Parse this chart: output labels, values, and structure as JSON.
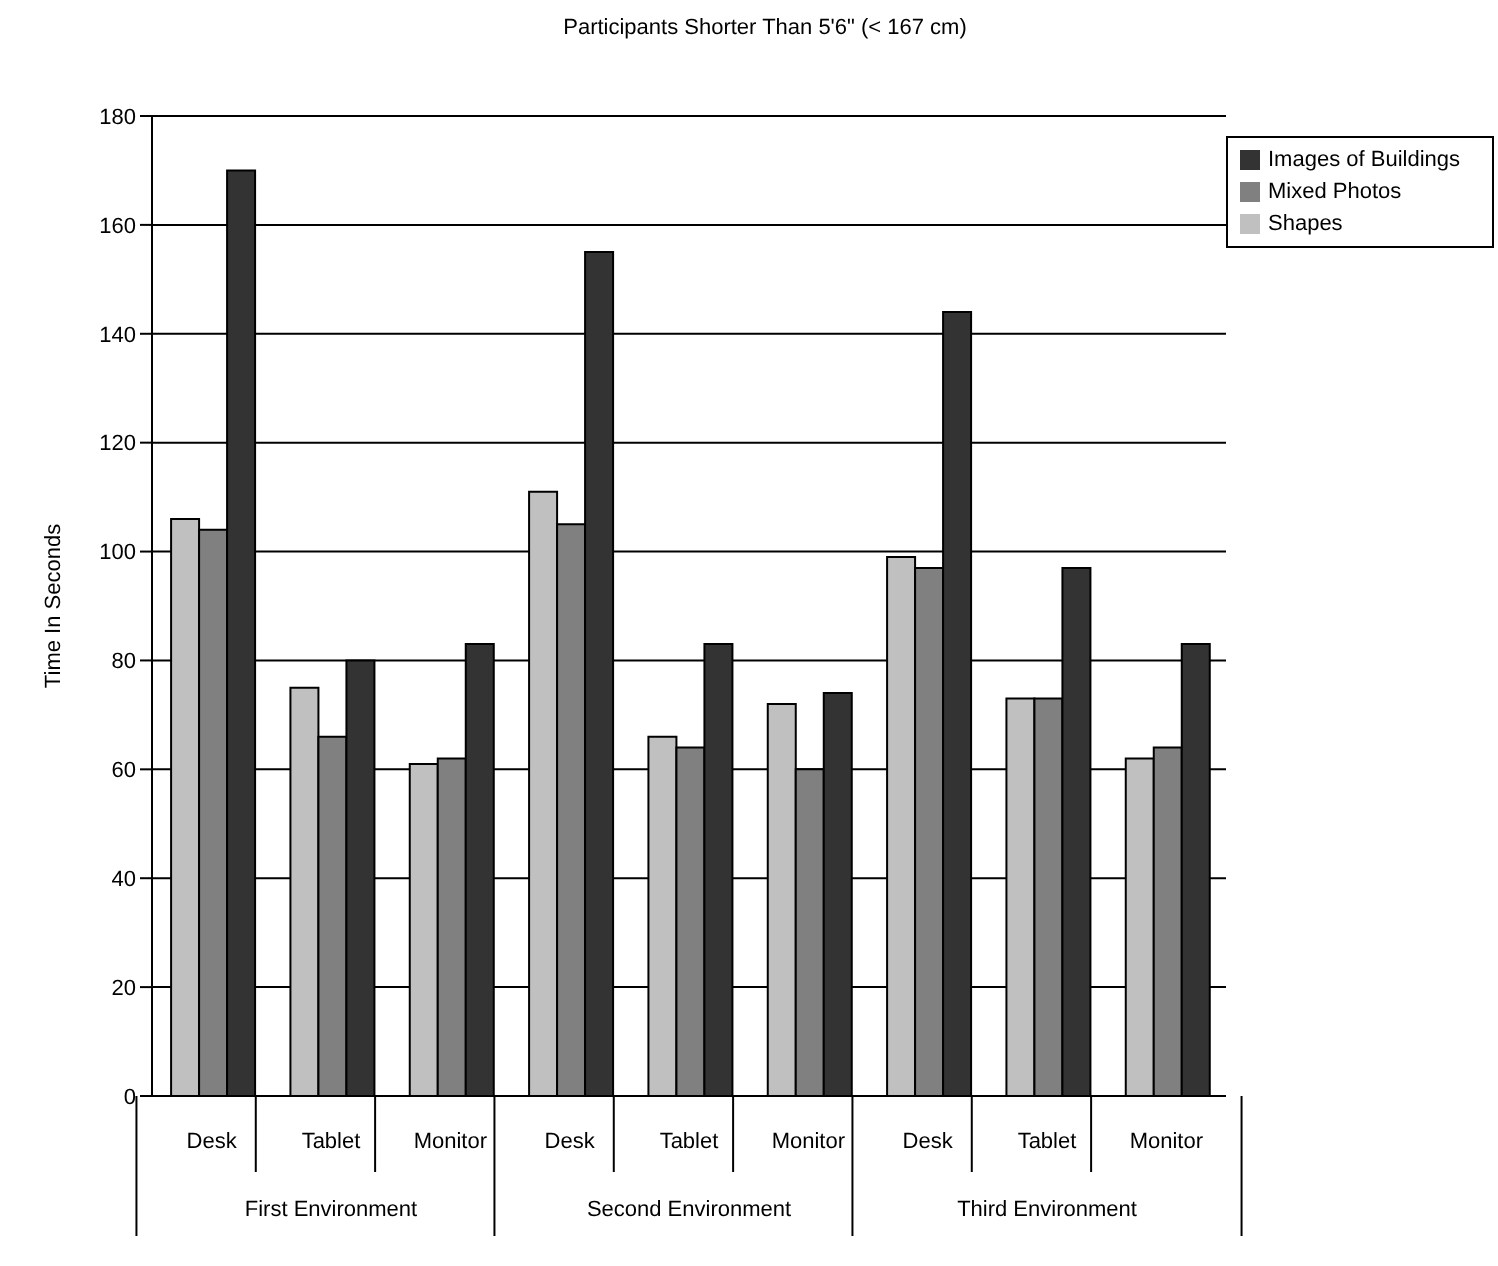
{
  "chart_data": {
    "type": "bar",
    "title": "Participants Shorter Than 5'6\" (< 167 cm)",
    "ylabel": "Time In Seconds",
    "categories": [
      "Desk",
      "Tablet",
      "Monitor",
      "Desk",
      "Tablet",
      "Monitor",
      "Desk",
      "Tablet",
      "Monitor"
    ],
    "annotations": [
      "First Environment",
      "Second Environment",
      "Third Environment"
    ],
    "series": [
      {
        "name": "Shapes",
        "color": "#c0c0c0",
        "values": [
          106,
          75,
          61,
          111,
          66,
          72,
          99,
          73,
          62
        ]
      },
      {
        "name": "Mixed Photos",
        "color": "#808080",
        "values": [
          104,
          66,
          62,
          105,
          64,
          60,
          97,
          73,
          64
        ]
      },
      {
        "name": "Images of Buildings",
        "color": "#333333",
        "values": [
          170,
          80,
          83,
          155,
          83,
          74,
          144,
          97,
          83
        ]
      }
    ],
    "ylim": [
      0,
      180
    ],
    "yticks": [
      0,
      20,
      40,
      60,
      80,
      100,
      120,
      140,
      160,
      180
    ],
    "grid": "y",
    "legend": "top right"
  }
}
